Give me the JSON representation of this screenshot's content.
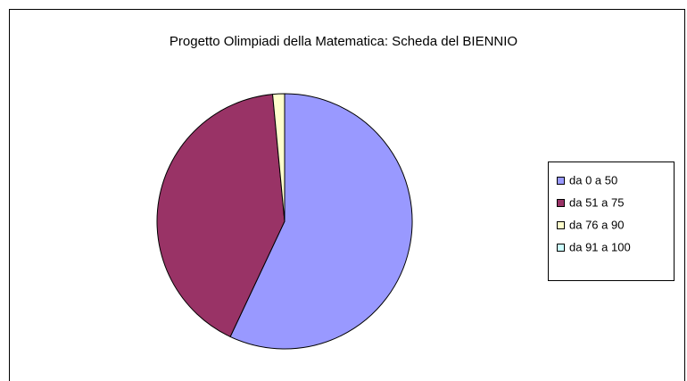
{
  "chart_data": {
    "type": "pie",
    "title": "Progetto Olimpiadi della Matematica: Scheda del BIENNIO",
    "categories": [
      "da 0 a 50",
      "da 51 a 75",
      "da 76 a 90",
      "da 91 a 100"
    ],
    "values": [
      57,
      41.5,
      1.5,
      0
    ],
    "colors": [
      "#9999ff",
      "#993366",
      "#ffffcc",
      "#ccffff"
    ],
    "legend": "right"
  }
}
